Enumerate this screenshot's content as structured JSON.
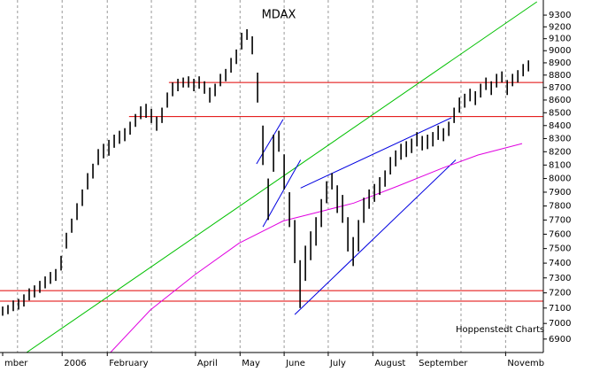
{
  "chart_data": {
    "type": "hilo",
    "title": "MDAX",
    "source": "Hoppenstedt Charts",
    "log": true,
    "bar_color": "#000000",
    "xlim": [
      -0.5,
      101.8
    ],
    "xgrid": [
      2.8,
      11.2,
      19.7,
      28,
      36.3,
      44.7,
      53,
      61.3,
      69.7,
      78,
      86.3,
      94.7
    ],
    "xticks": [
      {
        "value": 0,
        "label": "mber"
      },
      {
        "value": 11.2,
        "label": "2006"
      },
      {
        "value": 19.7,
        "label": "February"
      },
      {
        "value": 36.3,
        "label": "April"
      },
      {
        "value": 44.7,
        "label": "May"
      },
      {
        "value": 53,
        "label": "June"
      },
      {
        "value": 61.3,
        "label": "July"
      },
      {
        "value": 69.7,
        "label": "August"
      },
      {
        "value": 78,
        "label": "September"
      },
      {
        "value": 94.7,
        "label": "Novemb"
      }
    ],
    "ylim": [
      6815,
      9415
    ],
    "yticks": [
      6900,
      7000,
      7100,
      7200,
      7300,
      7400,
      7500,
      7600,
      7700,
      7800,
      7900,
      8000,
      8100,
      8200,
      8300,
      8400,
      8500,
      8600,
      8700,
      8800,
      8900,
      9000,
      9100,
      9200,
      9300
    ],
    "high": [
      7110,
      7120,
      7150,
      7160,
      7190,
      7230,
      7250,
      7280,
      7310,
      7340,
      7360,
      7450,
      7610,
      7710,
      7820,
      7920,
      8040,
      8110,
      8220,
      8260,
      8290,
      8330,
      8360,
      8380,
      8430,
      8490,
      8550,
      8570,
      8530,
      8470,
      8540,
      8660,
      8740,
      8770,
      8780,
      8790,
      8770,
      8790,
      8750,
      8700,
      8730,
      8810,
      8850,
      8940,
      9010,
      9150,
      9180,
      9120,
      8820,
      8400,
      8000,
      8330,
      8360,
      8180,
      7900,
      7700,
      7420,
      7520,
      7620,
      7720,
      7850,
      7980,
      8040,
      7950,
      7880,
      7720,
      7580,
      7700,
      7860,
      7920,
      7960,
      8010,
      8060,
      8160,
      8210,
      8260,
      8280,
      8300,
      8350,
      8320,
      8330,
      8350,
      8400,
      8380,
      8430,
      8540,
      8620,
      8650,
      8690,
      8670,
      8730,
      8780,
      8750,
      8810,
      8830,
      8760,
      8810,
      8840,
      8890,
      8920
    ],
    "low": [
      7050,
      7060,
      7080,
      7090,
      7110,
      7150,
      7170,
      7200,
      7230,
      7260,
      7280,
      7350,
      7500,
      7610,
      7700,
      7800,
      7920,
      8000,
      8100,
      8150,
      8170,
      8230,
      8260,
      8280,
      8330,
      8390,
      8450,
      8460,
      8420,
      8360,
      8420,
      8540,
      8630,
      8670,
      8700,
      8700,
      8670,
      8690,
      8650,
      8580,
      8630,
      8710,
      8750,
      8820,
      8890,
      9010,
      9090,
      8970,
      8580,
      8100,
      7700,
      8050,
      8200,
      7920,
      7650,
      7400,
      7100,
      7280,
      7420,
      7520,
      7650,
      7820,
      7920,
      7750,
      7680,
      7480,
      7380,
      7480,
      7680,
      7780,
      7830,
      7880,
      7940,
      8030,
      8090,
      8140,
      8160,
      8190,
      8240,
      8210,
      8220,
      8240,
      8290,
      8280,
      8320,
      8420,
      8500,
      8540,
      8590,
      8560,
      8620,
      8680,
      8640,
      8700,
      8740,
      8640,
      8710,
      8740,
      8790,
      8830
    ],
    "hlines": [
      {
        "value": 8740,
        "x0": 31.3,
        "color": "#e00000"
      },
      {
        "value": 8470,
        "x0": 23.8,
        "color": "#e00000"
      },
      {
        "value": 7215,
        "x0": -0.5,
        "color": "#e00000"
      },
      {
        "value": 7145,
        "x0": -0.5,
        "color": "#e00000"
      }
    ],
    "trendlines": [
      {
        "color": "#00c000",
        "x": [
          4.5,
          100.6
        ],
        "y": [
          6815,
          9415
        ]
      },
      {
        "color": "#0000e0",
        "x": [
          47.8,
          52.8
        ],
        "y": [
          8109,
          8447
        ]
      },
      {
        "color": "#0000e0",
        "x": [
          49,
          56.1
        ],
        "y": [
          7652,
          8139
        ]
      },
      {
        "color": "#0000e0",
        "x": [
          55,
          85.3
        ],
        "y": [
          7058,
          8139
        ]
      },
      {
        "color": "#0000e0",
        "x": [
          56.1,
          84.5
        ],
        "y": [
          7930,
          8461
        ]
      },
      {
        "color": "#e000e0",
        "x": [
          20.3,
          27.8,
          36.2,
          44.5,
          52.8,
          59.5,
          66.1,
          74.5,
          82.8,
          89.5,
          97.8
        ],
        "y": [
          6815,
          7087,
          7322,
          7537,
          7693,
          7757,
          7821,
          7946,
          8077,
          8175,
          8262
        ]
      }
    ]
  }
}
